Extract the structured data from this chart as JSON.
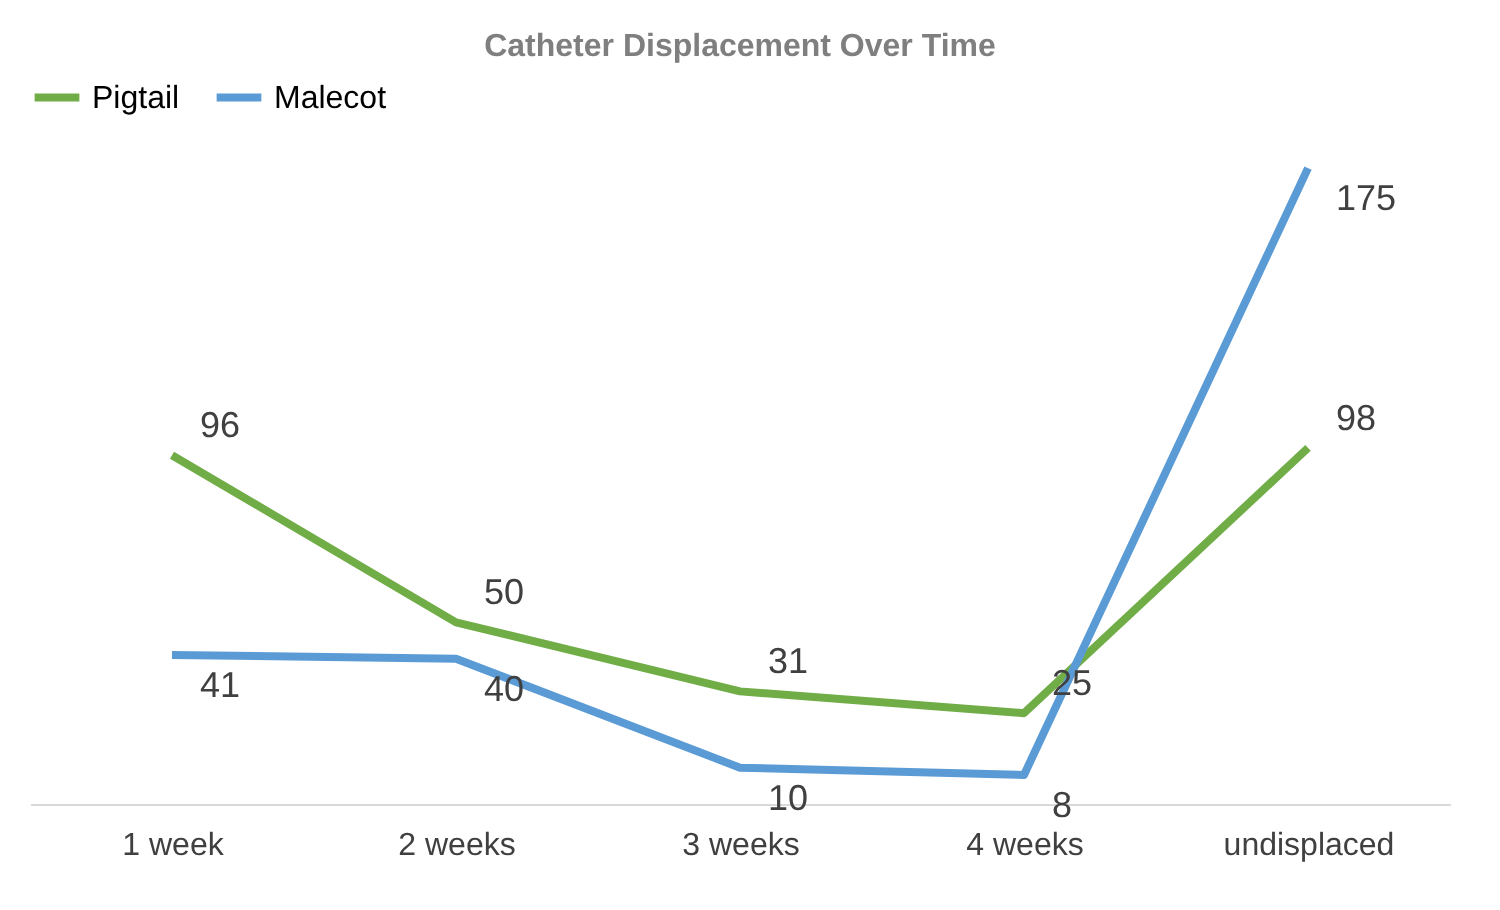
{
  "chart_data": {
    "type": "line",
    "title": "Catheter Displacement Over Time",
    "categories": [
      "1 week",
      "2 weeks",
      "3 weeks",
      "4 weeks",
      "undisplaced"
    ],
    "series": [
      {
        "name": "Pigtail",
        "color": "#70ad47",
        "values": [
          96,
          50,
          31,
          25,
          98
        ]
      },
      {
        "name": "Malecot",
        "color": "#5b9bd5",
        "values": [
          41,
          40,
          10,
          8,
          175
        ]
      }
    ],
    "data_labels": true,
    "legend": "top",
    "grid": false,
    "marker": "none",
    "line_style": "solid"
  }
}
